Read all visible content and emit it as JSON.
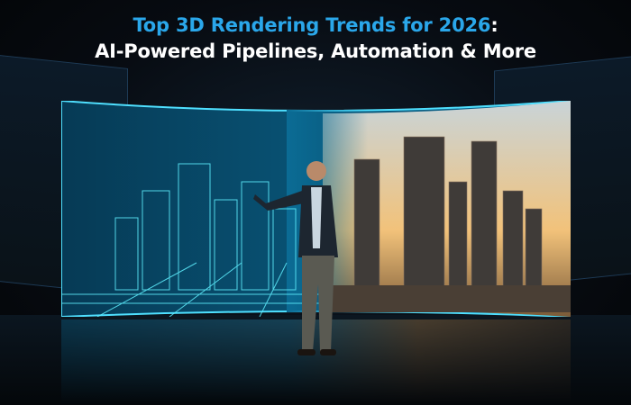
{
  "headline": {
    "line1": "Top 3D Rendering Trends for 2026",
    "line1_suffix": ":",
    "line2": "AI-Powered Pipelines, Automation & More"
  },
  "colors": {
    "accent": "#2aa7ea",
    "text": "#ffffff",
    "wireframe": "#33d6ff",
    "sunset": "#f2b35a"
  },
  "scene": {
    "icons": [
      "wireframe-city",
      "photoreal-city",
      "presenter"
    ]
  }
}
